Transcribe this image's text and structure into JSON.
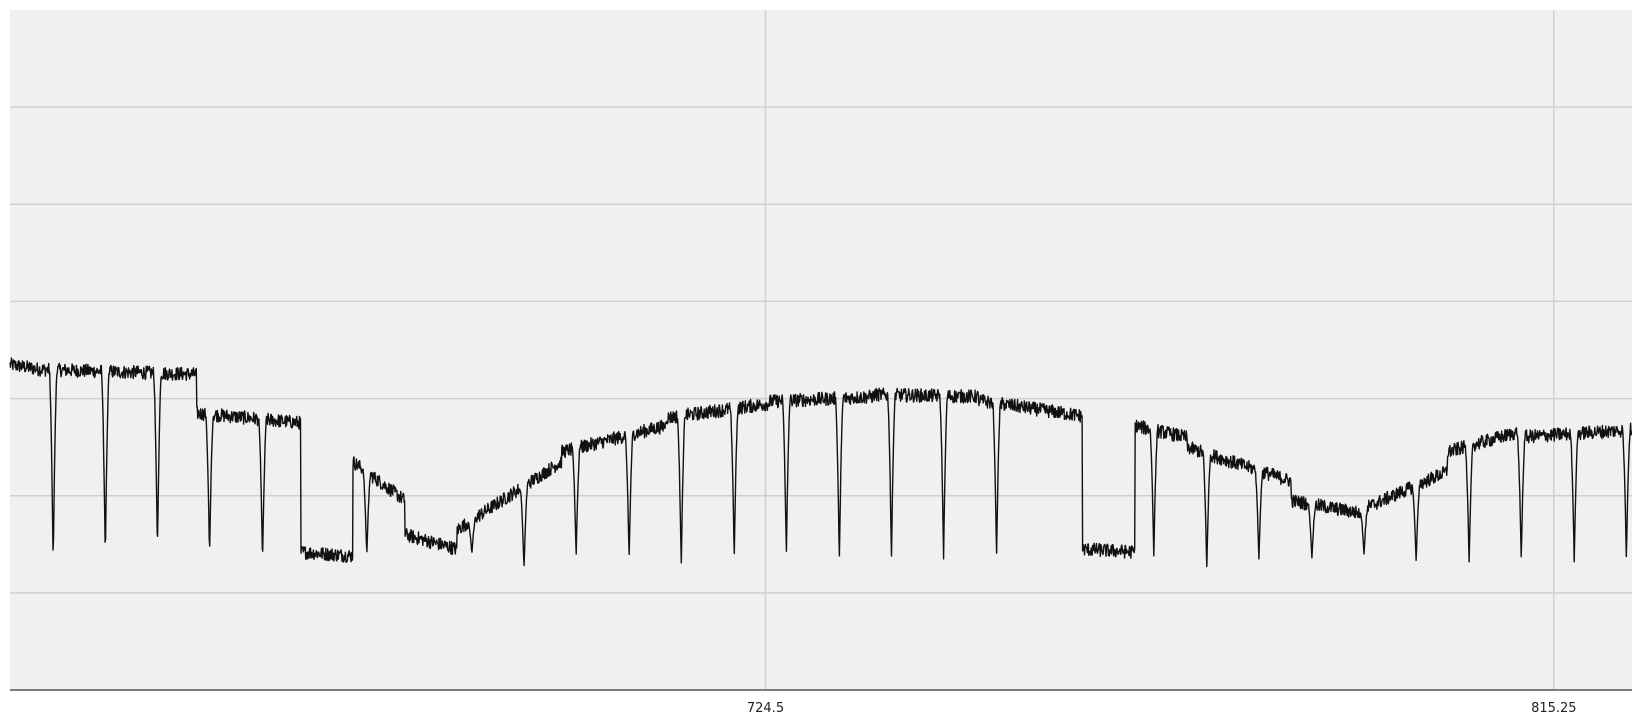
{
  "chart_data": {
    "type": "line",
    "title": "",
    "xlabel": "",
    "ylabel": "",
    "xlim": [
      637.53,
      824.25
    ],
    "ylim": [
      0,
      7
    ],
    "grid": true,
    "x_ticks": [
      724.5,
      815.25
    ],
    "x_tick_labels": [
      "724.5",
      "815.25"
    ],
    "series": [
      {
        "color": "#111111",
        "baseline_segments": [
          {
            "x0": 637.53,
            "x1": 641.0,
            "y0": 3.35,
            "y1": 3.3
          },
          {
            "x0": 641.0,
            "x1": 659.0,
            "y0": 3.3,
            "y1": 3.25
          },
          {
            "x0": 659.0,
            "x1": 671.0,
            "y0": 2.85,
            "y1": 2.75
          },
          {
            "x0": 671.0,
            "x1": 677.0,
            "y0": 1.42,
            "y1": 1.38
          },
          {
            "x0": 677.0,
            "x1": 683.0,
            "y0": 2.35,
            "y1": 1.95
          },
          {
            "x0": 683.0,
            "x1": 689.0,
            "y0": 1.6,
            "y1": 1.45
          },
          {
            "x0": 689.0,
            "x1": 701.0,
            "y0": 1.65,
            "y1": 2.35
          },
          {
            "x0": 701.0,
            "x1": 713.0,
            "y0": 2.45,
            "y1": 2.72
          },
          {
            "x0": 713.0,
            "x1": 725.0,
            "y0": 2.8,
            "y1": 2.95
          },
          {
            "x0": 725.0,
            "x1": 737.0,
            "y0": 2.97,
            "y1": 3.02
          },
          {
            "x0": 737.0,
            "x1": 749.0,
            "y0": 3.04,
            "y1": 3.02
          },
          {
            "x0": 749.0,
            "x1": 761.0,
            "y0": 2.98,
            "y1": 2.82
          },
          {
            "x0": 761.0,
            "x1": 767.0,
            "y0": 1.45,
            "y1": 1.42
          },
          {
            "x0": 767.0,
            "x1": 773.0,
            "y0": 2.72,
            "y1": 2.6
          },
          {
            "x0": 773.0,
            "x1": 785.0,
            "y0": 2.5,
            "y1": 2.15
          },
          {
            "x0": 785.0,
            "x1": 793.0,
            "y0": 1.95,
            "y1": 1.82
          },
          {
            "x0": 793.0,
            "x1": 803.0,
            "y0": 1.85,
            "y1": 2.25
          },
          {
            "x0": 803.0,
            "x1": 811.0,
            "y0": 2.45,
            "y1": 2.65
          },
          {
            "x0": 811.0,
            "x1": 824.25,
            "y0": 2.6,
            "y1": 2.68
          }
        ],
        "dips": [
          {
            "x": 642.5,
            "y": 1.3
          },
          {
            "x": 648.5,
            "y": 1.35
          },
          {
            "x": 654.5,
            "y": 1.42
          },
          {
            "x": 660.5,
            "y": 1.38
          },
          {
            "x": 666.6,
            "y": 1.3
          },
          {
            "x": 678.6,
            "y": 1.38
          },
          {
            "x": 690.7,
            "y": 1.4
          },
          {
            "x": 696.7,
            "y": 1.25
          },
          {
            "x": 702.7,
            "y": 1.38
          },
          {
            "x": 708.8,
            "y": 1.35
          },
          {
            "x": 714.8,
            "y": 1.28
          },
          {
            "x": 720.9,
            "y": 1.35
          },
          {
            "x": 726.9,
            "y": 1.4
          },
          {
            "x": 733.0,
            "y": 1.32
          },
          {
            "x": 739.0,
            "y": 1.35
          },
          {
            "x": 745.0,
            "y": 1.35
          },
          {
            "x": 751.1,
            "y": 1.38
          },
          {
            "x": 769.2,
            "y": 1.38
          },
          {
            "x": 775.3,
            "y": 1.25
          },
          {
            "x": 781.3,
            "y": 1.35
          },
          {
            "x": 787.4,
            "y": 1.35
          },
          {
            "x": 793.4,
            "y": 1.4
          },
          {
            "x": 799.4,
            "y": 1.32
          },
          {
            "x": 805.5,
            "y": 1.32
          },
          {
            "x": 811.5,
            "y": 1.35
          },
          {
            "x": 817.6,
            "y": 1.32
          },
          {
            "x": 823.6,
            "y": 1.35
          }
        ]
      }
    ]
  }
}
